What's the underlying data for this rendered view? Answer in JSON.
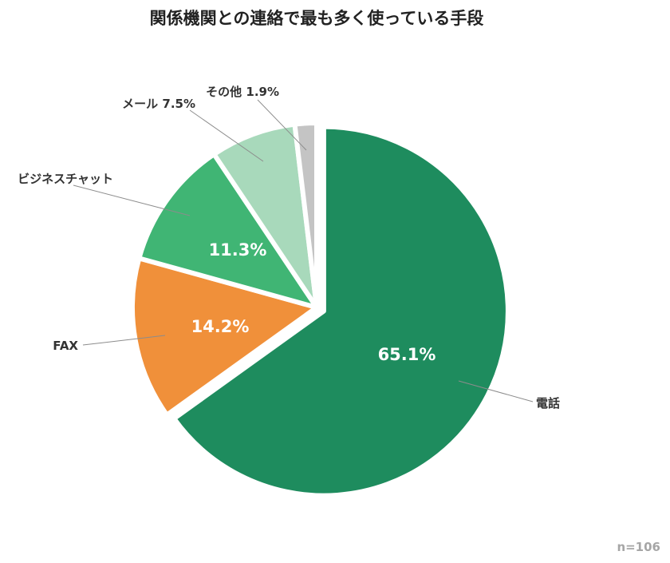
{
  "chart_data": {
    "type": "pie",
    "title": "関係機関との連絡で最も多く使っている手段",
    "note": "n=106",
    "slices": [
      {
        "label": "電話",
        "value": 65.1,
        "value_label": "65.1%",
        "color": "#1e8c5e",
        "label_mode": "inside"
      },
      {
        "label": "FAX",
        "value": 14.2,
        "value_label": "14.2%",
        "color": "#f0903a",
        "label_mode": "inside"
      },
      {
        "label": "ビジネスチャット",
        "value": 11.3,
        "value_label": "11.3%",
        "color": "#40b574",
        "label_mode": "inside"
      },
      {
        "label": "メール",
        "value": 7.5,
        "value_label": "7.5%",
        "color": "#a8d9bb",
        "label_mode": "outside"
      },
      {
        "label": "その他",
        "value": 1.9,
        "value_label": "1.9%",
        "color": "#c4c4c4",
        "label_mode": "outside"
      }
    ]
  }
}
